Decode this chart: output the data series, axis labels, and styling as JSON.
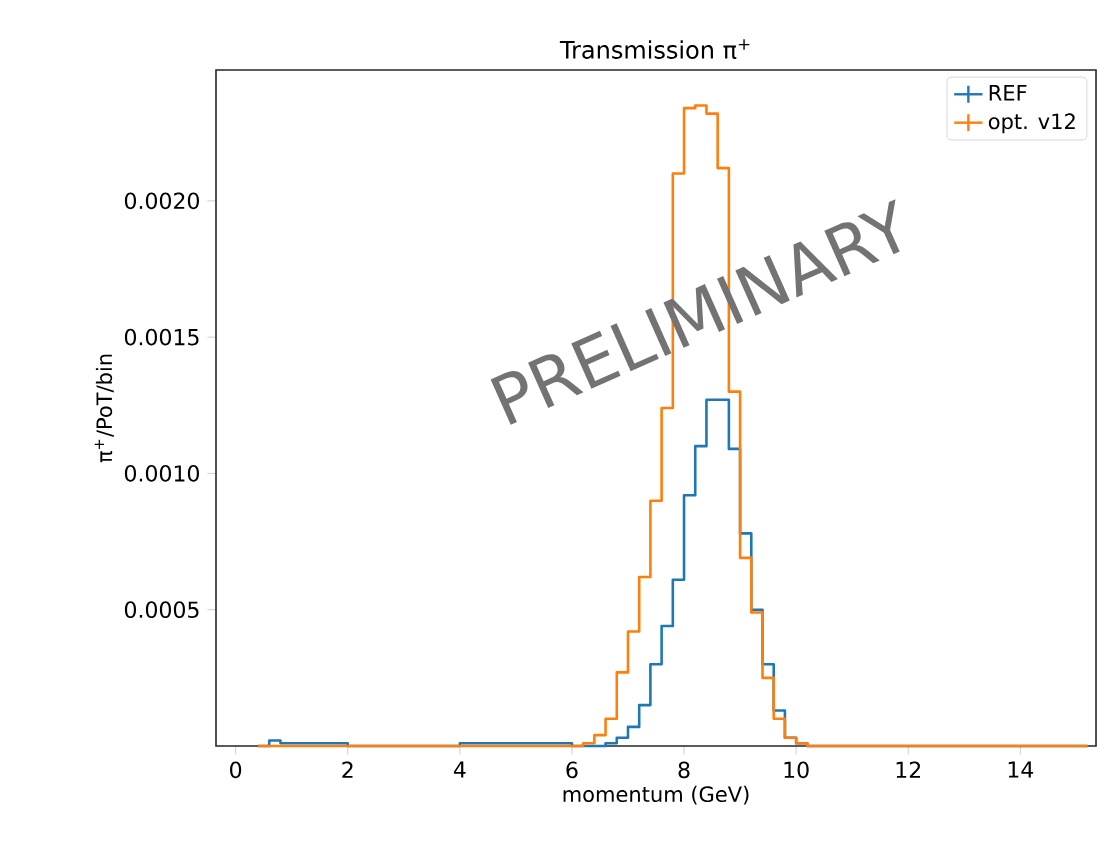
{
  "chart_data": {
    "type": "histogram",
    "title": "Transmission π$^{+}$",
    "xlabel": "momentum (GeV)",
    "ylabel": "π$^{+}$/PoT/bin",
    "bins": [
      0.4,
      0.6,
      0.8,
      1.0,
      2.0,
      4.0,
      6.0,
      6.2,
      6.4,
      6.6,
      6.8,
      7.0,
      7.2,
      7.4,
      7.6,
      7.8,
      8.0,
      8.2,
      8.4,
      8.6,
      8.8,
      9.0,
      9.2,
      9.4,
      9.6,
      9.8,
      10.0,
      10.2,
      15.2
    ],
    "series": [
      {
        "name": "REF",
        "color": "#1f77b4",
        "values": [
          0,
          2e-05,
          1e-05,
          1e-05,
          0,
          1e-05,
          0,
          0,
          0,
          1e-05,
          3e-05,
          7e-05,
          0.00015,
          0.0003,
          0.00044,
          0.00061,
          0.00092,
          0.0011,
          0.00127,
          0.00127,
          0.00109,
          0.00078,
          0.0005,
          0.0003,
          0.00013,
          3e-05,
          1e-05,
          0
        ]
      },
      {
        "name": "opt. v12",
        "color": "#ff7f0e",
        "values": [
          0,
          0,
          0,
          0,
          0,
          0,
          0,
          1e-05,
          4e-05,
          0.0001,
          0.00027,
          0.00042,
          0.00062,
          0.0009,
          0.00124,
          0.0021,
          0.00234,
          0.00235,
          0.00232,
          0.00212,
          0.0013,
          0.00069,
          0.00049,
          0.00025,
          0.0001,
          3e-05,
          1e-05,
          0
        ]
      }
    ],
    "xlim": [
      -0.35,
      15.35
    ],
    "ylim": [
      0,
      0.00248
    ],
    "xticks": [
      0,
      2,
      4,
      6,
      8,
      10,
      12,
      14
    ],
    "yticks": [
      {
        "value": 0.0005,
        "label": "0.0005"
      },
      {
        "value": 0.001,
        "label": "0.0010"
      },
      {
        "value": 0.0015,
        "label": "0.0015"
      },
      {
        "value": 0.002,
        "label": "0.0020"
      }
    ],
    "legend": "top right",
    "marker": "cross",
    "annotations": [
      "PRELIMINARY"
    ]
  }
}
